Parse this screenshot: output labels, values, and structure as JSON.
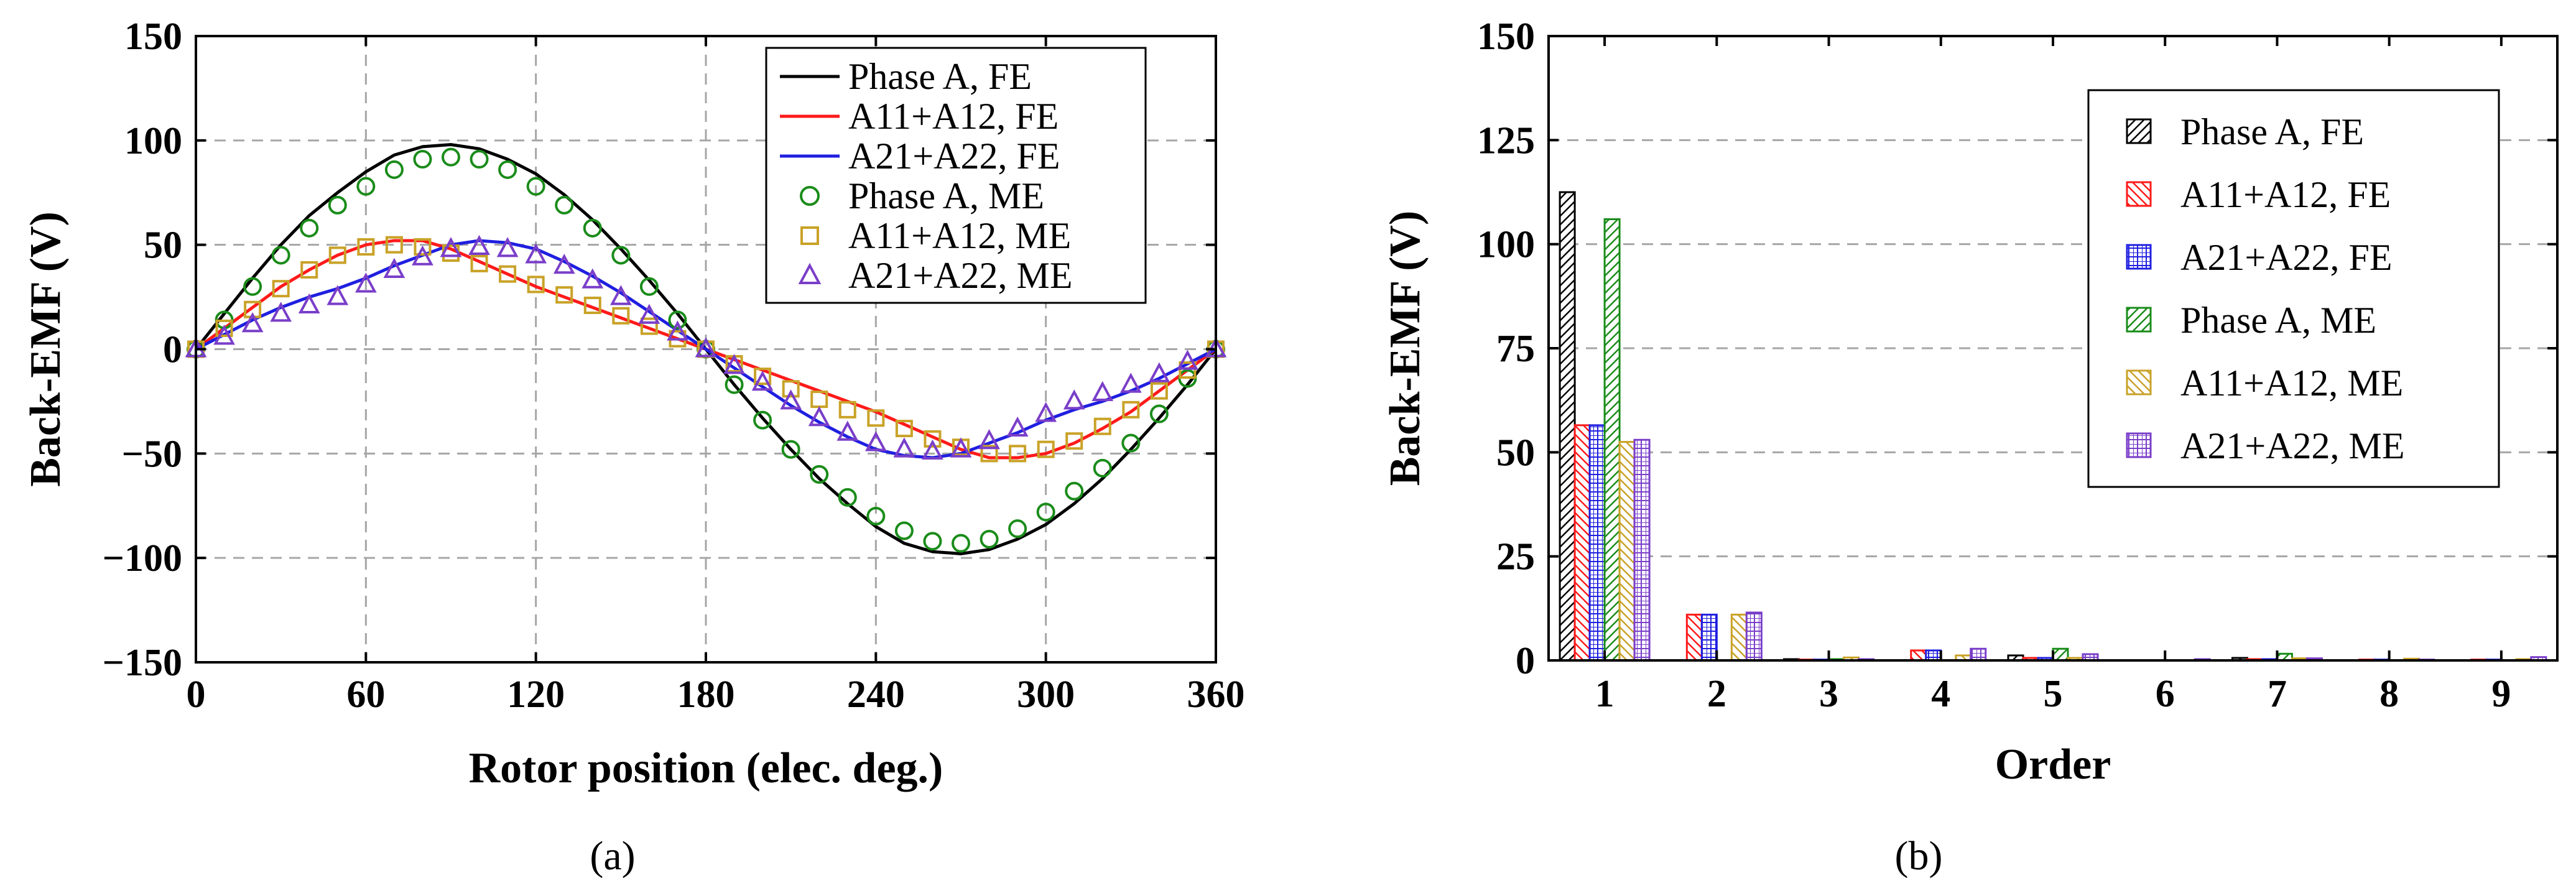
{
  "captions": {
    "a": "(a)",
    "b": "(b)"
  },
  "colors": {
    "black": "#000000",
    "red": "#ff1a1a",
    "blue": "#1f1fe0",
    "green": "#1a8c1a",
    "gold": "#c9a227",
    "purple": "#7a3ec9"
  },
  "chart_data": [
    {
      "type": "line",
      "panel": "a",
      "xlabel": "Rotor position (elec. deg.)",
      "ylabel": "Back-EMF (V)",
      "xlim": [
        0,
        360
      ],
      "ylim": [
        -150,
        150
      ],
      "xticks": [
        0,
        60,
        120,
        180,
        240,
        300,
        360
      ],
      "xtick_labels": [
        "0",
        "60",
        "120",
        "180",
        "240",
        "300",
        "360"
      ],
      "yticks": [
        -150,
        -100,
        -50,
        0,
        50,
        100,
        150
      ],
      "ytick_labels": [
        "−150",
        "−100",
        "−50",
        "0",
        "50",
        "100",
        "150"
      ],
      "grid": true,
      "legend": "top-right",
      "series": [
        {
          "name": "Phase A, FE",
          "style": "line",
          "color": "#000000",
          "x": [
            0,
            10,
            20,
            30,
            40,
            50,
            60,
            70,
            80,
            90,
            100,
            110,
            120,
            130,
            140,
            150,
            160,
            170,
            180,
            190,
            200,
            210,
            220,
            230,
            240,
            250,
            260,
            270,
            280,
            290,
            300,
            310,
            320,
            330,
            340,
            350,
            360
          ],
          "y": [
            0,
            17,
            34,
            50,
            64,
            75,
            85,
            93,
            97,
            98,
            96,
            91,
            84,
            74,
            62,
            48,
            33,
            17,
            0,
            -17,
            -33,
            -48,
            -62,
            -74,
            -85,
            -93,
            -97,
            -98,
            -96,
            -91,
            -84,
            -74,
            -62,
            -48,
            -33,
            -17,
            0
          ]
        },
        {
          "name": "A11+A12, FE",
          "style": "line",
          "color": "#ff1a1a",
          "x": [
            0,
            10,
            20,
            30,
            40,
            50,
            60,
            70,
            80,
            90,
            100,
            110,
            120,
            130,
            140,
            150,
            160,
            170,
            180,
            190,
            200,
            210,
            220,
            230,
            240,
            250,
            260,
            270,
            280,
            290,
            300,
            310,
            320,
            330,
            340,
            350,
            360
          ],
          "y": [
            0,
            10,
            20,
            30,
            38,
            45,
            50,
            52,
            52,
            48,
            42,
            36,
            30,
            25,
            20,
            15,
            10,
            5,
            0,
            -5,
            -10,
            -15,
            -20,
            -25,
            -30,
            -36,
            -42,
            -48,
            -52,
            -52,
            -50,
            -45,
            -38,
            -30,
            -20,
            -10,
            0
          ]
        },
        {
          "name": "A21+A22, FE",
          "style": "line",
          "color": "#1f1fe0",
          "x": [
            0,
            10,
            20,
            30,
            40,
            50,
            60,
            70,
            80,
            90,
            100,
            110,
            120,
            130,
            140,
            150,
            160,
            170,
            180,
            190,
            200,
            210,
            220,
            230,
            240,
            250,
            260,
            270,
            280,
            290,
            300,
            310,
            320,
            330,
            340,
            350,
            360
          ],
          "y": [
            0,
            7,
            14,
            20,
            25,
            29,
            34,
            40,
            45,
            50,
            52,
            51,
            48,
            42,
            35,
            27,
            18,
            9,
            0,
            -9,
            -18,
            -27,
            -35,
            -42,
            -48,
            -51,
            -52,
            -50,
            -45,
            -40,
            -34,
            -29,
            -25,
            -20,
            -14,
            -7,
            0
          ]
        },
        {
          "name": "Phase A, ME",
          "style": "marker",
          "marker": "circle",
          "color": "#1a8c1a",
          "x": [
            0,
            10,
            20,
            30,
            40,
            50,
            60,
            70,
            80,
            90,
            100,
            110,
            120,
            130,
            140,
            150,
            160,
            170,
            180,
            190,
            200,
            210,
            220,
            230,
            240,
            250,
            260,
            270,
            280,
            290,
            300,
            310,
            320,
            330,
            340,
            350,
            360
          ],
          "y": [
            0,
            14,
            30,
            45,
            58,
            69,
            78,
            86,
            91,
            92,
            91,
            86,
            78,
            69,
            58,
            45,
            30,
            14,
            0,
            -17,
            -34,
            -48,
            -60,
            -71,
            -80,
            -87,
            -92,
            -93,
            -91,
            -86,
            -78,
            -68,
            -57,
            -45,
            -31,
            -14,
            0
          ]
        },
        {
          "name": "A11+A12, ME",
          "style": "marker",
          "marker": "square",
          "color": "#c9a227",
          "x": [
            0,
            10,
            20,
            30,
            40,
            50,
            60,
            70,
            80,
            90,
            100,
            110,
            120,
            130,
            140,
            150,
            160,
            170,
            180,
            190,
            200,
            210,
            220,
            230,
            240,
            250,
            260,
            270,
            280,
            290,
            300,
            310,
            320,
            330,
            340,
            350,
            360
          ],
          "y": [
            0,
            10,
            19,
            29,
            38,
            45,
            49,
            50,
            49,
            46,
            41,
            36,
            31,
            26,
            21,
            16,
            11,
            5,
            0,
            -7,
            -13,
            -19,
            -24,
            -29,
            -33,
            -38,
            -43,
            -47,
            -50,
            -50,
            -48,
            -44,
            -37,
            -29,
            -20,
            -10,
            0
          ]
        },
        {
          "name": "A21+A22, ME",
          "style": "marker",
          "marker": "triangle",
          "color": "#7a3ec9",
          "x": [
            0,
            10,
            20,
            30,
            40,
            50,
            60,
            70,
            80,
            90,
            100,
            110,
            120,
            130,
            140,
            150,
            160,
            170,
            180,
            190,
            200,
            210,
            220,
            230,
            240,
            250,
            260,
            270,
            280,
            290,
            300,
            310,
            320,
            330,
            340,
            350,
            360
          ],
          "y": [
            0,
            6,
            12,
            17,
            21,
            25,
            31,
            38,
            44,
            48,
            49,
            48,
            45,
            40,
            33,
            25,
            16,
            8,
            0,
            -8,
            -16,
            -25,
            -33,
            -40,
            -45,
            -48,
            -49,
            -48,
            -44,
            -38,
            -31,
            -25,
            -21,
            -17,
            -12,
            -6,
            0
          ]
        }
      ]
    },
    {
      "type": "bar",
      "panel": "b",
      "xlabel": "Order",
      "ylabel": "Back-EMF (V)",
      "categories": [
        "1",
        "2",
        "3",
        "4",
        "5",
        "6",
        "7",
        "8",
        "9"
      ],
      "ylim": [
        0,
        150
      ],
      "yticks": [
        0,
        25,
        50,
        75,
        100,
        125,
        150
      ],
      "ytick_labels": [
        "0",
        "25",
        "50",
        "75",
        "100",
        "125",
        "150"
      ],
      "grid": true,
      "legend": "top-right",
      "series": [
        {
          "name": "Phase A, FE",
          "pattern": "diag",
          "color": "#000000",
          "values": [
            112.5,
            0,
            0.3,
            0,
            1.2,
            0,
            0.6,
            0,
            0
          ]
        },
        {
          "name": "A11+A12, FE",
          "pattern": "backdiag",
          "color": "#ff1a1a",
          "values": [
            56.5,
            11,
            0.2,
            2.4,
            0.6,
            0,
            0.3,
            0.2,
            0.2
          ]
        },
        {
          "name": "A21+A22, FE",
          "pattern": "grid",
          "color": "#1f1fe0",
          "values": [
            56.5,
            11,
            0.2,
            2.4,
            0.6,
            0,
            0.3,
            0.2,
            0.2
          ]
        },
        {
          "name": "Phase A, ME",
          "pattern": "diag",
          "color": "#1a8c1a",
          "values": [
            106,
            0,
            0.3,
            0,
            2.8,
            0,
            1.6,
            0,
            0
          ]
        },
        {
          "name": "A11+A12, ME",
          "pattern": "backdiag",
          "color": "#c9a227",
          "values": [
            52.5,
            11,
            0.7,
            1.2,
            0.6,
            0,
            0.5,
            0.4,
            0.3
          ]
        },
        {
          "name": "A21+A22, ME",
          "pattern": "grid",
          "color": "#7a3ec9",
          "values": [
            53,
            11.5,
            0.3,
            2.8,
            1.5,
            0.3,
            0.5,
            0.2,
            0.8
          ]
        }
      ]
    }
  ]
}
